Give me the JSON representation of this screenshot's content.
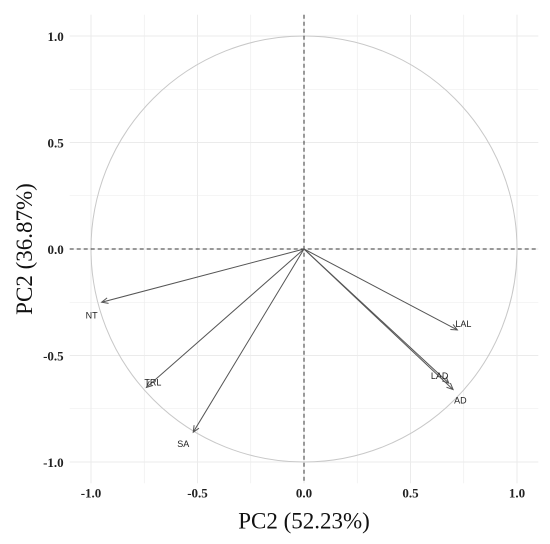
{
  "chart_data": {
    "type": "scatter",
    "subtype": "pca-correlation-circle",
    "title": "",
    "xlabel": "PC2 (52.23%)",
    "ylabel": "PC2 (36.87%)",
    "xlim": [
      -1.1,
      1.1
    ],
    "ylim": [
      -1.1,
      1.1
    ],
    "xticks": [
      -1.0,
      -0.5,
      0.0,
      0.5,
      1.0
    ],
    "yticks": [
      -1.0,
      -0.5,
      0.0,
      0.5,
      1.0
    ],
    "xtick_labels": [
      "-1.0",
      "-0.5",
      "0.0",
      "0.5",
      "1.0"
    ],
    "ytick_labels": [
      "-1.0",
      "-0.5",
      "0.0",
      "0.5",
      "1.0"
    ],
    "grid": true,
    "unit_circle": true,
    "colors": {
      "grid": "#ebebeb",
      "circle": "#c8c8c8",
      "arrow": "#555555",
      "zero_line": "#333333"
    },
    "vectors": [
      {
        "label": "NT",
        "x": -0.95,
        "y": -0.25
      },
      {
        "label": "TRL",
        "x": -0.74,
        "y": -0.65
      },
      {
        "label": "SA",
        "x": -0.52,
        "y": -0.86
      },
      {
        "label": "LAL",
        "x": 0.72,
        "y": -0.38
      },
      {
        "label": "LAD",
        "x": 0.68,
        "y": -0.63
      },
      {
        "label": "AD",
        "x": 0.7,
        "y": -0.66
      }
    ]
  }
}
